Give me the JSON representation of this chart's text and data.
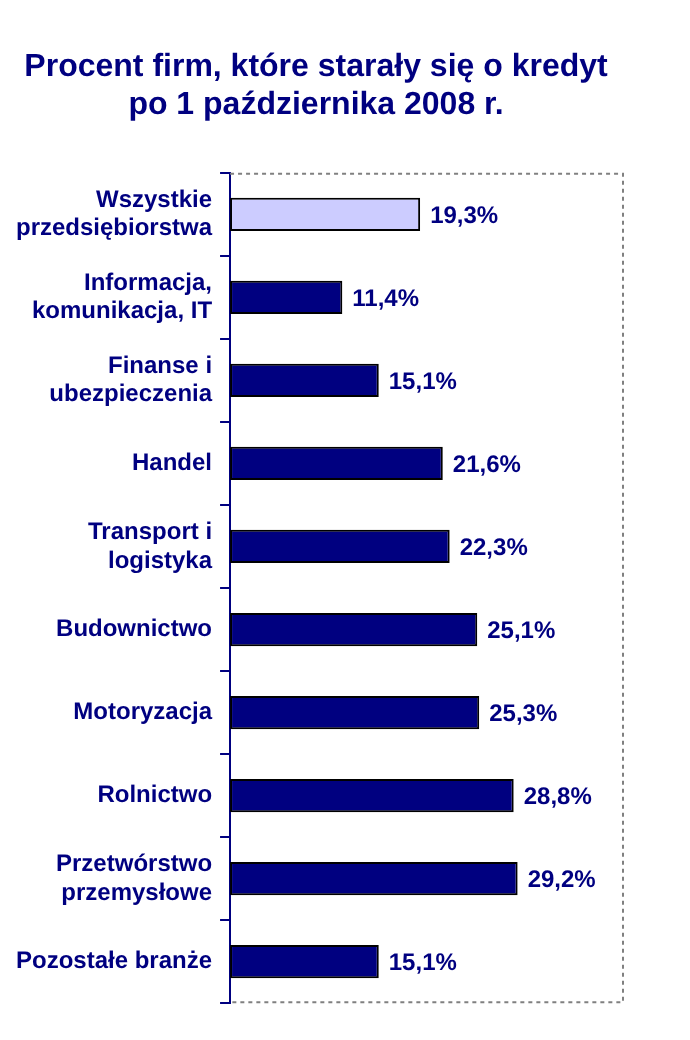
{
  "chart_data": {
    "type": "bar",
    "orientation": "horizontal",
    "title": "Procent firm, które starały się o kredyt\npo 1 października 2008 r.",
    "categories": [
      "Wszystkie\nprzedsiębiorstwa",
      "Informacja,\nkomunikacja, IT",
      "Finanse i\nubezpieczenia",
      "Handel",
      "Transport i\nlogistyka",
      "Budownictwo",
      "Motoryzacja",
      "Rolnictwo",
      "Przetwórstwo\nprzemysłowe",
      "Pozostałe branże"
    ],
    "values": [
      19.3,
      11.4,
      15.1,
      21.6,
      22.3,
      25.1,
      25.3,
      28.8,
      29.2,
      15.1
    ],
    "value_labels": [
      "19,3%",
      "11,4%",
      "15,1%",
      "21,6%",
      "22,3%",
      "25,1%",
      "25,3%",
      "28,8%",
      "29,2%",
      "15,1%"
    ],
    "colors": [
      "#ccccff",
      "#000080",
      "#000080",
      "#000080",
      "#000080",
      "#000080",
      "#000080",
      "#000080",
      "#000080",
      "#000080"
    ],
    "xlim": [
      0,
      40
    ],
    "tick_labels": "y"
  }
}
